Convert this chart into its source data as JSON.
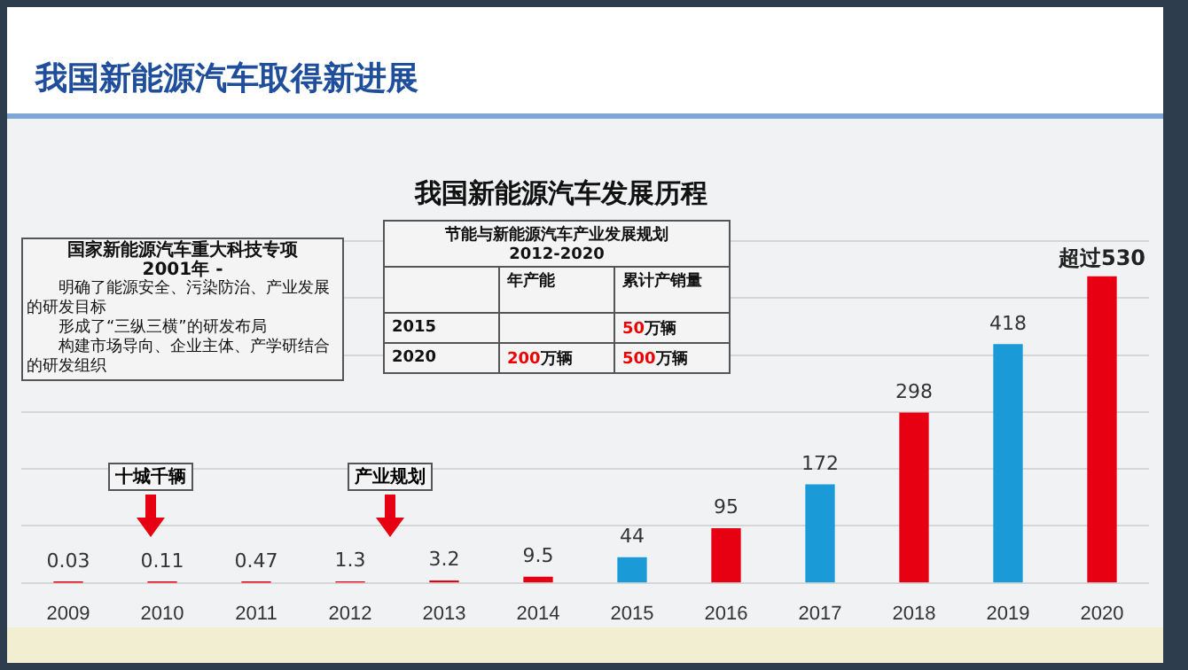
{
  "chart_data": {
    "type": "bar",
    "title": "我国新能源汽车取得新进展",
    "subtitle": "我国新能源汽车发展历程",
    "categories": [
      "2009",
      "2010",
      "2011",
      "2012",
      "2013",
      "2014",
      "2015",
      "2016",
      "2017",
      "2018",
      "2019",
      "2020"
    ],
    "values": [
      0.03,
      0.11,
      0.47,
      1.3,
      3.2,
      9.5,
      44,
      95,
      172,
      298,
      418,
      537
    ],
    "value_labels": [
      "0.03",
      "0.11",
      "0.47",
      "1.3",
      "3.2",
      "9.5",
      "44",
      "95",
      "172",
      "298",
      "418",
      null
    ],
    "colors": [
      "#e60012",
      "#e60012",
      "#e60012",
      "#e60012",
      "#e60012",
      "#e60012",
      "#1a9ad6",
      "#e60012",
      "#1a9ad6",
      "#e60012",
      "#1a9ad6",
      "#e60012"
    ],
    "ylim": [
      0,
      600
    ],
    "yticks": [
      {
        "value": 0,
        "label": null
      },
      {
        "value": 100,
        "label": null
      },
      {
        "value": 200,
        "label": null
      },
      {
        "value": 300,
        "label": null
      },
      {
        "value": 400,
        "label": null
      },
      {
        "value": 500,
        "label": null
      },
      {
        "value": 600,
        "label": null
      }
    ],
    "grid": "y",
    "legend": false,
    "tick_labels": "x",
    "annotations": [
      {
        "text": "超过530",
        "x": "2020",
        "y": 537
      },
      "十城千辆",
      "产业规划",
      "国家新能源汽车重大科技专项",
      "2001年 -",
      "明确了能源安全、污染防治、产业发展的研发目标",
      "形成了“三纵三横”的研发布局",
      "构建市场导向、企业主体、产学研结合的研发组织",
      "节能与新能源汽车产业发展规划",
      "2012-2020",
      "年产能",
      "累计产销量",
      "2015",
      "50万辆",
      "2020",
      "200万辆",
      "500万辆"
    ]
  }
}
